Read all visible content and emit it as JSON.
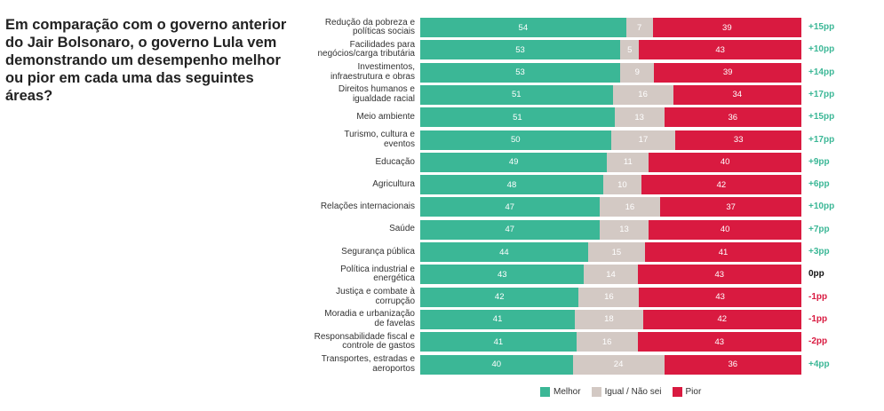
{
  "question": "Em comparação com o governo anterior do Jair Bolsonaro, o governo Lula vem demonstrando um desempenho melhor ou pior em cada uma das seguintes áreas?",
  "chart_data": {
    "type": "bar",
    "orientation": "horizontal-stacked-100",
    "categories": [
      [
        "Redução da pobreza e",
        "políticas sociais"
      ],
      [
        "Facilidades para",
        "negócios/carga tributária"
      ],
      [
        "Investimentos,",
        "infraestrutura e obras"
      ],
      [
        "Direitos humanos e",
        "igualdade racial"
      ],
      [
        "Meio ambiente"
      ],
      [
        "Turismo, cultura e",
        "eventos"
      ],
      [
        "Educação"
      ],
      [
        "Agricultura"
      ],
      [
        "Relações internacionais"
      ],
      [
        "Saúde"
      ],
      [
        "Segurança pública"
      ],
      [
        "Política industrial e",
        "energética"
      ],
      [
        "Justiça e combate à",
        "corrupção"
      ],
      [
        "Moradia e urbanização",
        "de favelas"
      ],
      [
        "Responsabilidade fiscal e",
        "controle de gastos"
      ],
      [
        "Transportes, estradas e",
        "aeroportos"
      ]
    ],
    "series": [
      {
        "name": "Melhor",
        "color": "#3bb796",
        "values": [
          54,
          53,
          53,
          51,
          51,
          50,
          49,
          48,
          47,
          47,
          44,
          43,
          42,
          41,
          41,
          40
        ]
      },
      {
        "name": "Igual / Não sei",
        "color": "#d3c9c4",
        "values": [
          7,
          5,
          9,
          16,
          13,
          17,
          11,
          10,
          16,
          13,
          15,
          14,
          16,
          18,
          16,
          24
        ]
      },
      {
        "name": "Pior",
        "color": "#d91a40",
        "values": [
          39,
          43,
          39,
          34,
          36,
          33,
          40,
          42,
          37,
          40,
          41,
          43,
          43,
          42,
          43,
          36
        ]
      }
    ],
    "deltas": [
      "+15pp",
      "+10pp",
      "+14pp",
      "+17pp",
      "+15pp",
      "+17pp",
      "+9pp",
      "+6pp",
      "+10pp",
      "+7pp",
      "+3pp",
      "0pp",
      "-1pp",
      "-1pp",
      "-2pp",
      "+4pp"
    ],
    "delta_colors": {
      "positive": "#3bb796",
      "zero": "#111111",
      "negative": "#d91a40"
    },
    "legend_position": "bottom"
  }
}
